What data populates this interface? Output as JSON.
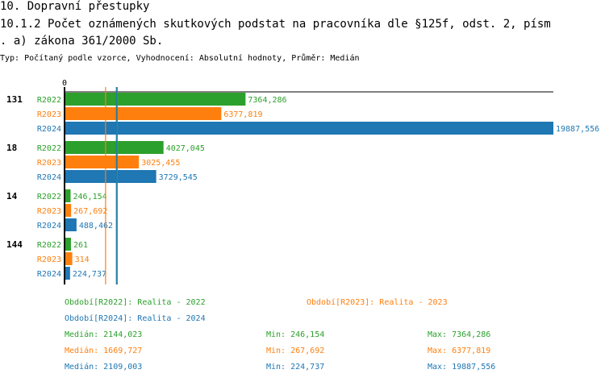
{
  "header": {
    "title": "10. Dopravní přestupky",
    "subtitle_line1": "10.1.2 Počet oznámených skutkových podstat na pracovníka dle §125f, odst. 2, písm",
    "subtitle_line2": ". a) zákona 361/2000 Sb.",
    "info": "Typ: Počítaný podle vzorce, Vyhodnocení: Absolutní hodnoty, Průměr: Medián"
  },
  "colors": {
    "R2022": "#2ca02c",
    "R2023": "#ff7f0e",
    "R2024": "#1f77b4"
  },
  "chart_data": {
    "type": "bar",
    "orientation": "horizontal",
    "categories": [
      "131",
      "18",
      "14",
      "144"
    ],
    "series": [
      {
        "name": "R2022",
        "values": [
          7364.286,
          4027.045,
          246.154,
          261
        ],
        "labels": [
          "7364,286",
          "4027,045",
          "246,154",
          "261"
        ]
      },
      {
        "name": "R2023",
        "values": [
          6377.819,
          3025.455,
          267.692,
          314
        ],
        "labels": [
          "6377,819",
          "3025,455",
          "267,692",
          "314"
        ]
      },
      {
        "name": "R2024",
        "values": [
          19887.556,
          3729.545,
          488.462,
          224.737
        ],
        "labels": [
          "19887,556",
          "3729,545",
          "488,462",
          "224,737"
        ]
      }
    ],
    "x_tick_label": "0",
    "xlim": [
      0,
      19887.556
    ],
    "medians": [
      {
        "series": "R2022",
        "value": 2144.023
      },
      {
        "series": "R2023",
        "value": 1669.727
      },
      {
        "series": "R2024",
        "value": 2109.003
      }
    ]
  },
  "legend": {
    "periods": [
      {
        "label": "Období[R2022]: Realita - 2022",
        "color": "#2ca02c"
      },
      {
        "label": "Období[R2023]: Realita - 2023",
        "color": "#ff7f0e"
      },
      {
        "label": "Období[R2024]: Realita - 2024",
        "color": "#1f77b4"
      }
    ],
    "stats": [
      {
        "median": "Medián: 2144,023",
        "min": "Min: 246,154",
        "max": "Max: 7364,286",
        "color": "#2ca02c"
      },
      {
        "median": "Medián: 1669,727",
        "min": "Min: 267,692",
        "max": "Max: 6377,819",
        "color": "#ff7f0e"
      },
      {
        "median": "Medián: 2109,003",
        "min": "Min: 224,737",
        "max": "Max: 19887,556",
        "color": "#1f77b4"
      }
    ]
  }
}
